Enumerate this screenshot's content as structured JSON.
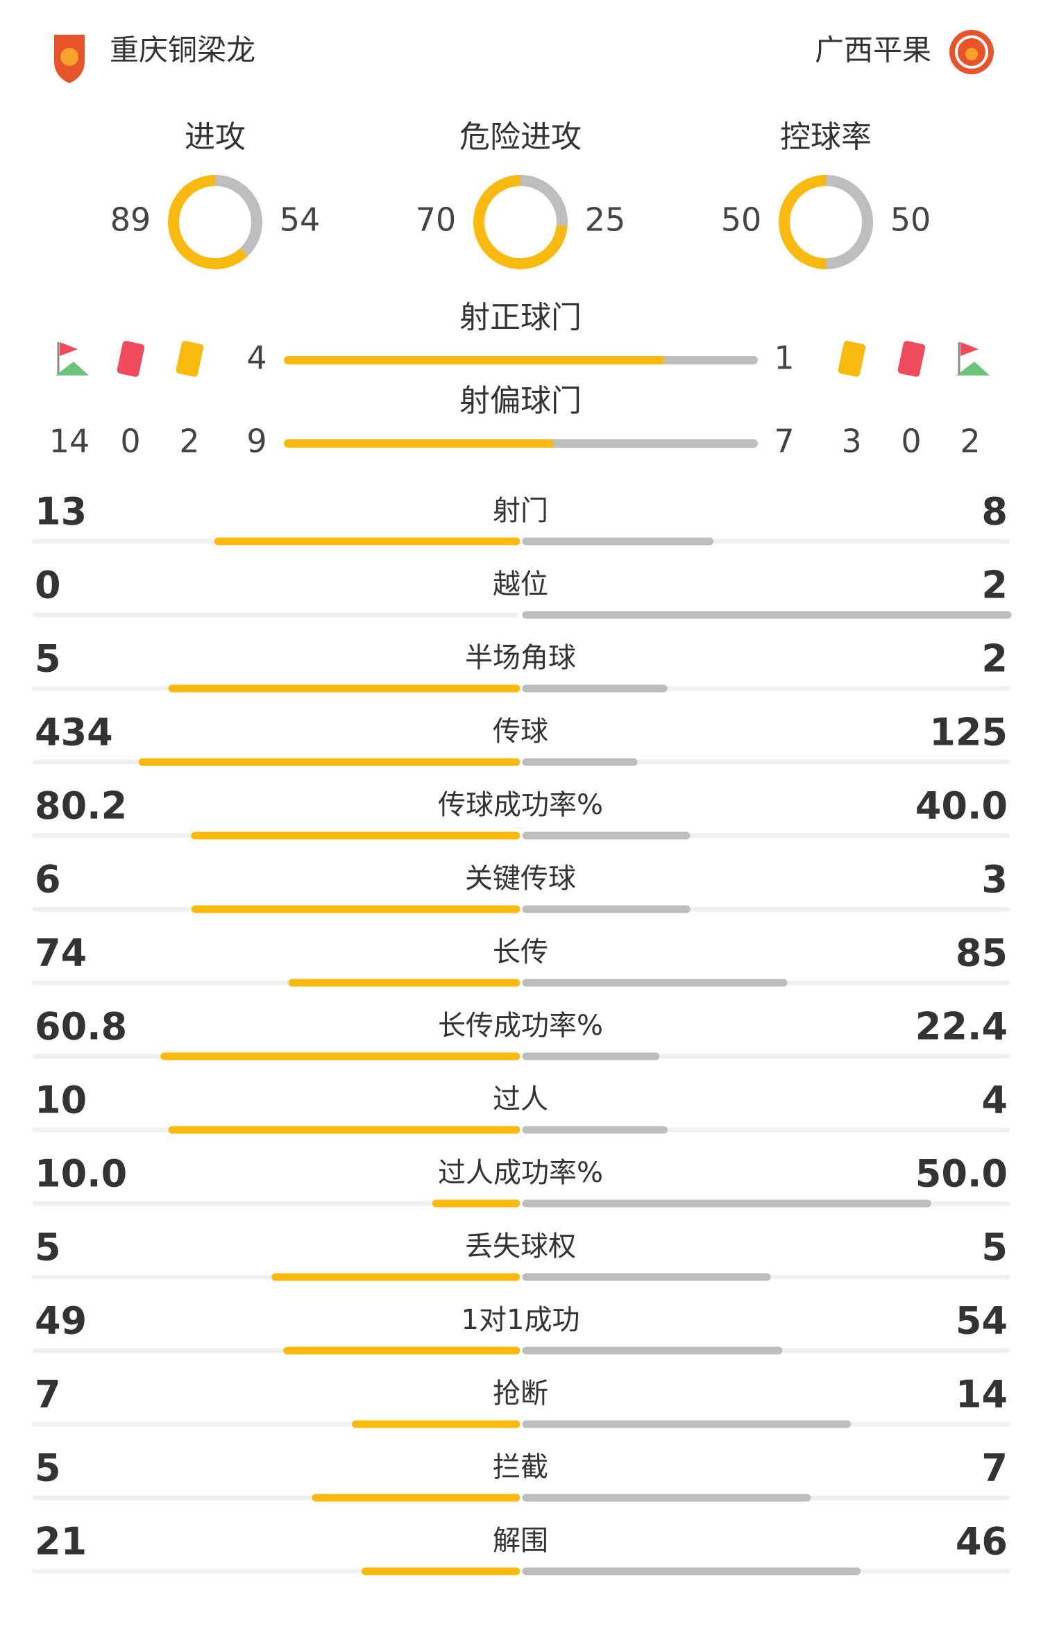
{
  "home": {
    "name": "重庆铜梁龙"
  },
  "away": {
    "name": "广西平果"
  },
  "colors": {
    "home": "#f9b90f",
    "away": "#bdbdbd",
    "track": "#f0f0f0"
  },
  "rings": [
    {
      "label": "进攻",
      "home": 89,
      "away": 54
    },
    {
      "label": "危险进攻",
      "home": 70,
      "away": 25
    },
    {
      "label": "控球率",
      "home": 50,
      "away": 50
    }
  ],
  "shots": [
    {
      "label": "射正球门",
      "home": 4,
      "away": 1
    },
    {
      "label": "射偏球门",
      "home": 9,
      "away": 7
    }
  ],
  "cards": {
    "home": {
      "corners": 14,
      "red": 0,
      "yellow": 2
    },
    "away": {
      "yellow": 3,
      "red": 0,
      "corners": 2
    }
  },
  "stats": [
    {
      "label": "射门",
      "home": 13,
      "away": 8
    },
    {
      "label": "越位",
      "home": 0,
      "away": 2
    },
    {
      "label": "半场角球",
      "home": 5,
      "away": 2
    },
    {
      "label": "传球",
      "home": 434,
      "away": 125
    },
    {
      "label": "传球成功率%",
      "home": 80.2,
      "away": 40,
      "away_label": "40.0"
    },
    {
      "label": "关键传球",
      "home": 6,
      "away": 3
    },
    {
      "label": "长传",
      "home": 74,
      "away": 85
    },
    {
      "label": "长传成功率%",
      "home": 60.8,
      "away": 22.4
    },
    {
      "label": "过人",
      "home": 10,
      "away": 4
    },
    {
      "label": "过人成功率%",
      "home": 10,
      "home_label": "10.0",
      "away": 50,
      "away_label": "50.0"
    },
    {
      "label": "丢失球权",
      "home": 5,
      "away": 5
    },
    {
      "label": "1对1成功",
      "home": 49,
      "away": 54
    },
    {
      "label": "抢断",
      "home": 7,
      "away": 14
    },
    {
      "label": "拦截",
      "home": 5,
      "away": 7
    },
    {
      "label": "解围",
      "home": 21,
      "away": 46
    }
  ]
}
